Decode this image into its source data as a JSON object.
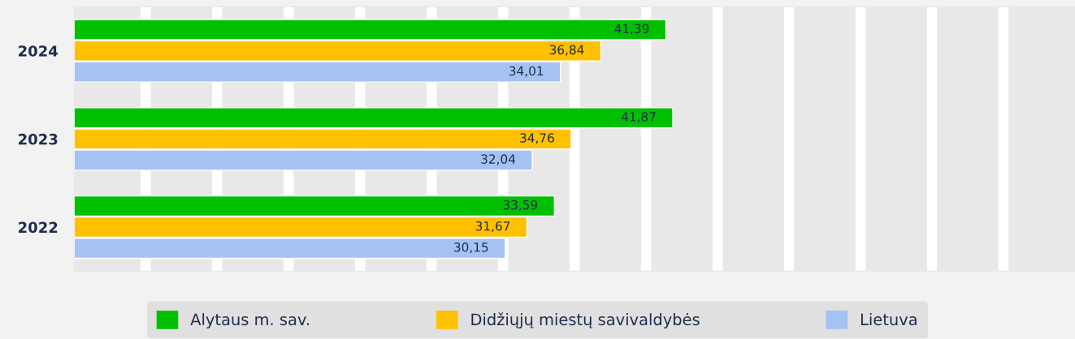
{
  "chart_data": {
    "type": "bar",
    "orientation": "horizontal",
    "categories": [
      "2024",
      "2023",
      "2022"
    ],
    "series": [
      {
        "name": "Alytaus m. sav.",
        "color": "#00c000",
        "values": [
          41.39,
          41.87,
          33.59
        ],
        "value_labels": [
          "41,39",
          "41,87",
          "33,59"
        ]
      },
      {
        "name": "Didžiųjų miestų savivaldybės",
        "color": "#ffc000",
        "values": [
          36.84,
          34.76,
          31.67
        ],
        "value_labels": [
          "36,84",
          "34,76",
          "31,67"
        ]
      },
      {
        "name": "Lietuva",
        "color": "#a4c2f4",
        "values": [
          34.01,
          32.04,
          30.15
        ],
        "value_labels": [
          "34,01",
          "32,04",
          "30,15"
        ]
      }
    ],
    "xlim": [
      0,
      70
    ],
    "xticks": [
      {
        "value": 5,
        "label": null
      },
      {
        "value": 10,
        "label": null
      },
      {
        "value": 15,
        "label": null
      },
      {
        "value": 20,
        "label": null
      },
      {
        "value": 25,
        "label": null
      },
      {
        "value": 30,
        "label": null
      },
      {
        "value": 35,
        "label": null
      },
      {
        "value": 40,
        "label": null
      },
      {
        "value": 45,
        "label": null
      },
      {
        "value": 50,
        "label": null
      },
      {
        "value": 55,
        "label": null
      },
      {
        "value": 60,
        "label": null
      },
      {
        "value": 65,
        "label": null
      }
    ],
    "grid": "x",
    "legend": "bottom",
    "tick_labels": "y"
  }
}
